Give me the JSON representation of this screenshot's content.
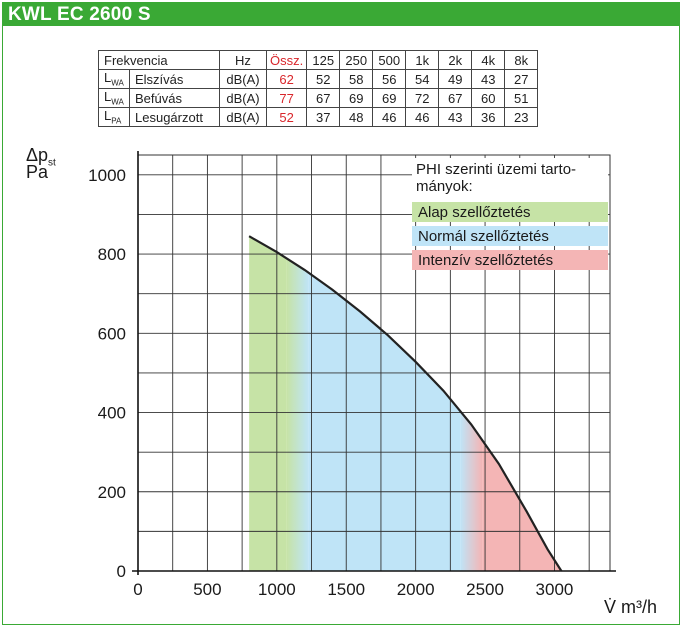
{
  "header": {
    "title": "KWL EC 2600 S"
  },
  "table": {
    "headers": [
      "Frekvencia",
      "Hz",
      "Össz.",
      "125",
      "250",
      "500",
      "1k",
      "2k",
      "4k",
      "8k"
    ],
    "rows": [
      {
        "sym": "L",
        "sub": "WA",
        "label": "Elszívás",
        "unit": "dB(A)",
        "total": "62",
        "values": [
          "52",
          "58",
          "56",
          "54",
          "49",
          "43",
          "27"
        ]
      },
      {
        "sym": "L",
        "sub": "WA",
        "label": "Befúvás",
        "unit": "dB(A)",
        "total": "77",
        "values": [
          "67",
          "69",
          "69",
          "72",
          "67",
          "60",
          "51"
        ]
      },
      {
        "sym": "L",
        "sub": "PA",
        "label": "Lesugárzott",
        "unit": "dB(A)",
        "total": "52",
        "values": [
          "37",
          "48",
          "46",
          "46",
          "43",
          "36",
          "23"
        ]
      }
    ]
  },
  "axis": {
    "y_sym": "Δp",
    "y_sub": "st",
    "y_unit": "Pa",
    "x_unit": "V̇ m³/h"
  },
  "legend": {
    "title_line1": "PHI szerinti üzemi tarto-",
    "title_line2": "mányok:",
    "items": [
      {
        "label": "Alap szellőztetés",
        "color": "#c6e3a6"
      },
      {
        "label": "Normál szellőztetés",
        "color": "#bfe4f7"
      },
      {
        "label": "Intenzív szellőztetés",
        "color": "#f4b5b5"
      }
    ]
  },
  "colors": {
    "brand": "#3aa935",
    "curve": "#222222",
    "total_text": "#d9262b"
  },
  "chart_data": {
    "type": "area",
    "title": "",
    "xlabel": "V̇ m³/h",
    "ylabel": "Δpst Pa",
    "xlim": [
      0,
      3400
    ],
    "ylim": [
      0,
      1050
    ],
    "x_ticks": [
      0,
      500,
      1000,
      1500,
      2000,
      2500,
      3000
    ],
    "y_ticks": [
      0,
      200,
      400,
      600,
      800,
      1000
    ],
    "grid": true,
    "legend_position": "top-right",
    "curve": {
      "x": [
        800,
        1000,
        1200,
        1400,
        1600,
        1800,
        2000,
        2200,
        2400,
        2600,
        2800,
        2950,
        3050
      ],
      "y": [
        845,
        805,
        760,
        710,
        655,
        595,
        528,
        455,
        370,
        270,
        150,
        55,
        0
      ]
    },
    "regions": [
      {
        "name": "Alap szellőztetés",
        "x_from": 800,
        "x_to": 1150
      },
      {
        "name": "Normál szellőztetés",
        "x_from": 1150,
        "x_to": 2400
      },
      {
        "name": "Intenzív szellőztetés",
        "x_from": 2400,
        "x_to": 3050
      }
    ]
  }
}
